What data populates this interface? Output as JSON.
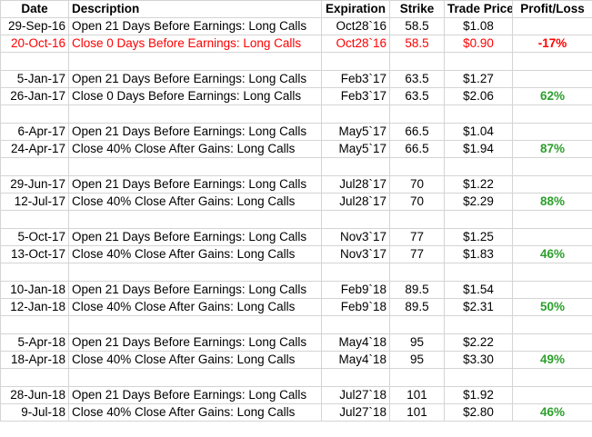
{
  "headers": {
    "date": "Date",
    "description": "Description",
    "expiration": "Expiration",
    "strike": "Strike",
    "trade_price": "Trade Price",
    "profit_loss": "Profit/Loss"
  },
  "rows": [
    {
      "date": "29-Sep-16",
      "description": "Open 21 Days Before Earnings: Long Calls",
      "expiration": "Oct28`16",
      "strike": "58.5",
      "trade_price": "$1.08",
      "profit_loss": ""
    },
    {
      "date": "20-Oct-16",
      "description": "Close 0 Days Before Earnings: Long Calls",
      "expiration": "Oct28`16",
      "strike": "58.5",
      "trade_price": "$0.90",
      "profit_loss": "-17%"
    },
    {
      "date": "5-Jan-17",
      "description": "Open 21 Days Before Earnings: Long Calls",
      "expiration": "Feb3`17",
      "strike": "63.5",
      "trade_price": "$1.27",
      "profit_loss": ""
    },
    {
      "date": "26-Jan-17",
      "description": "Close 0 Days Before Earnings: Long Calls",
      "expiration": "Feb3`17",
      "strike": "63.5",
      "trade_price": "$2.06",
      "profit_loss": "62%"
    },
    {
      "date": "6-Apr-17",
      "description": "Open 21 Days Before Earnings: Long Calls",
      "expiration": "May5`17",
      "strike": "66.5",
      "trade_price": "$1.04",
      "profit_loss": ""
    },
    {
      "date": "24-Apr-17",
      "description": "Close 40% Close After Gains: Long Calls",
      "expiration": "May5`17",
      "strike": "66.5",
      "trade_price": "$1.94",
      "profit_loss": "87%"
    },
    {
      "date": "29-Jun-17",
      "description": "Open 21 Days Before Earnings: Long Calls",
      "expiration": "Jul28`17",
      "strike": "70",
      "trade_price": "$1.22",
      "profit_loss": ""
    },
    {
      "date": "12-Jul-17",
      "description": "Close 40% Close After Gains: Long Calls",
      "expiration": "Jul28`17",
      "strike": "70",
      "trade_price": "$2.29",
      "profit_loss": "88%"
    },
    {
      "date": "5-Oct-17",
      "description": "Open 21 Days Before Earnings: Long Calls",
      "expiration": "Nov3`17",
      "strike": "77",
      "trade_price": "$1.25",
      "profit_loss": ""
    },
    {
      "date": "13-Oct-17",
      "description": "Close 40% Close After Gains: Long Calls",
      "expiration": "Nov3`17",
      "strike": "77",
      "trade_price": "$1.83",
      "profit_loss": "46%"
    },
    {
      "date": "10-Jan-18",
      "description": "Open 21 Days Before Earnings: Long Calls",
      "expiration": "Feb9`18",
      "strike": "89.5",
      "trade_price": "$1.54",
      "profit_loss": ""
    },
    {
      "date": "12-Jan-18",
      "description": "Close 40% Close After Gains: Long Calls",
      "expiration": "Feb9`18",
      "strike": "89.5",
      "trade_price": "$2.31",
      "profit_loss": "50%"
    },
    {
      "date": "5-Apr-18",
      "description": "Open 21 Days Before Earnings: Long Calls",
      "expiration": "May4`18",
      "strike": "95",
      "trade_price": "$2.22",
      "profit_loss": ""
    },
    {
      "date": "18-Apr-18",
      "description": "Close 40% Close After Gains: Long Calls",
      "expiration": "May4`18",
      "strike": "95",
      "trade_price": "$3.30",
      "profit_loss": "49%"
    },
    {
      "date": "28-Jun-18",
      "description": "Open 21 Days Before Earnings: Long Calls",
      "expiration": "Jul27`18",
      "strike": "101",
      "trade_price": "$1.92",
      "profit_loss": ""
    },
    {
      "date": "9-Jul-18",
      "description": "Close 40% Close After Gains: Long Calls",
      "expiration": "Jul27`18",
      "strike": "101",
      "trade_price": "$2.80",
      "profit_loss": "46%"
    }
  ],
  "colors": {
    "loss": "#ff0000",
    "gain": "#2ca02c",
    "gridline": "#d4d4d4"
  }
}
